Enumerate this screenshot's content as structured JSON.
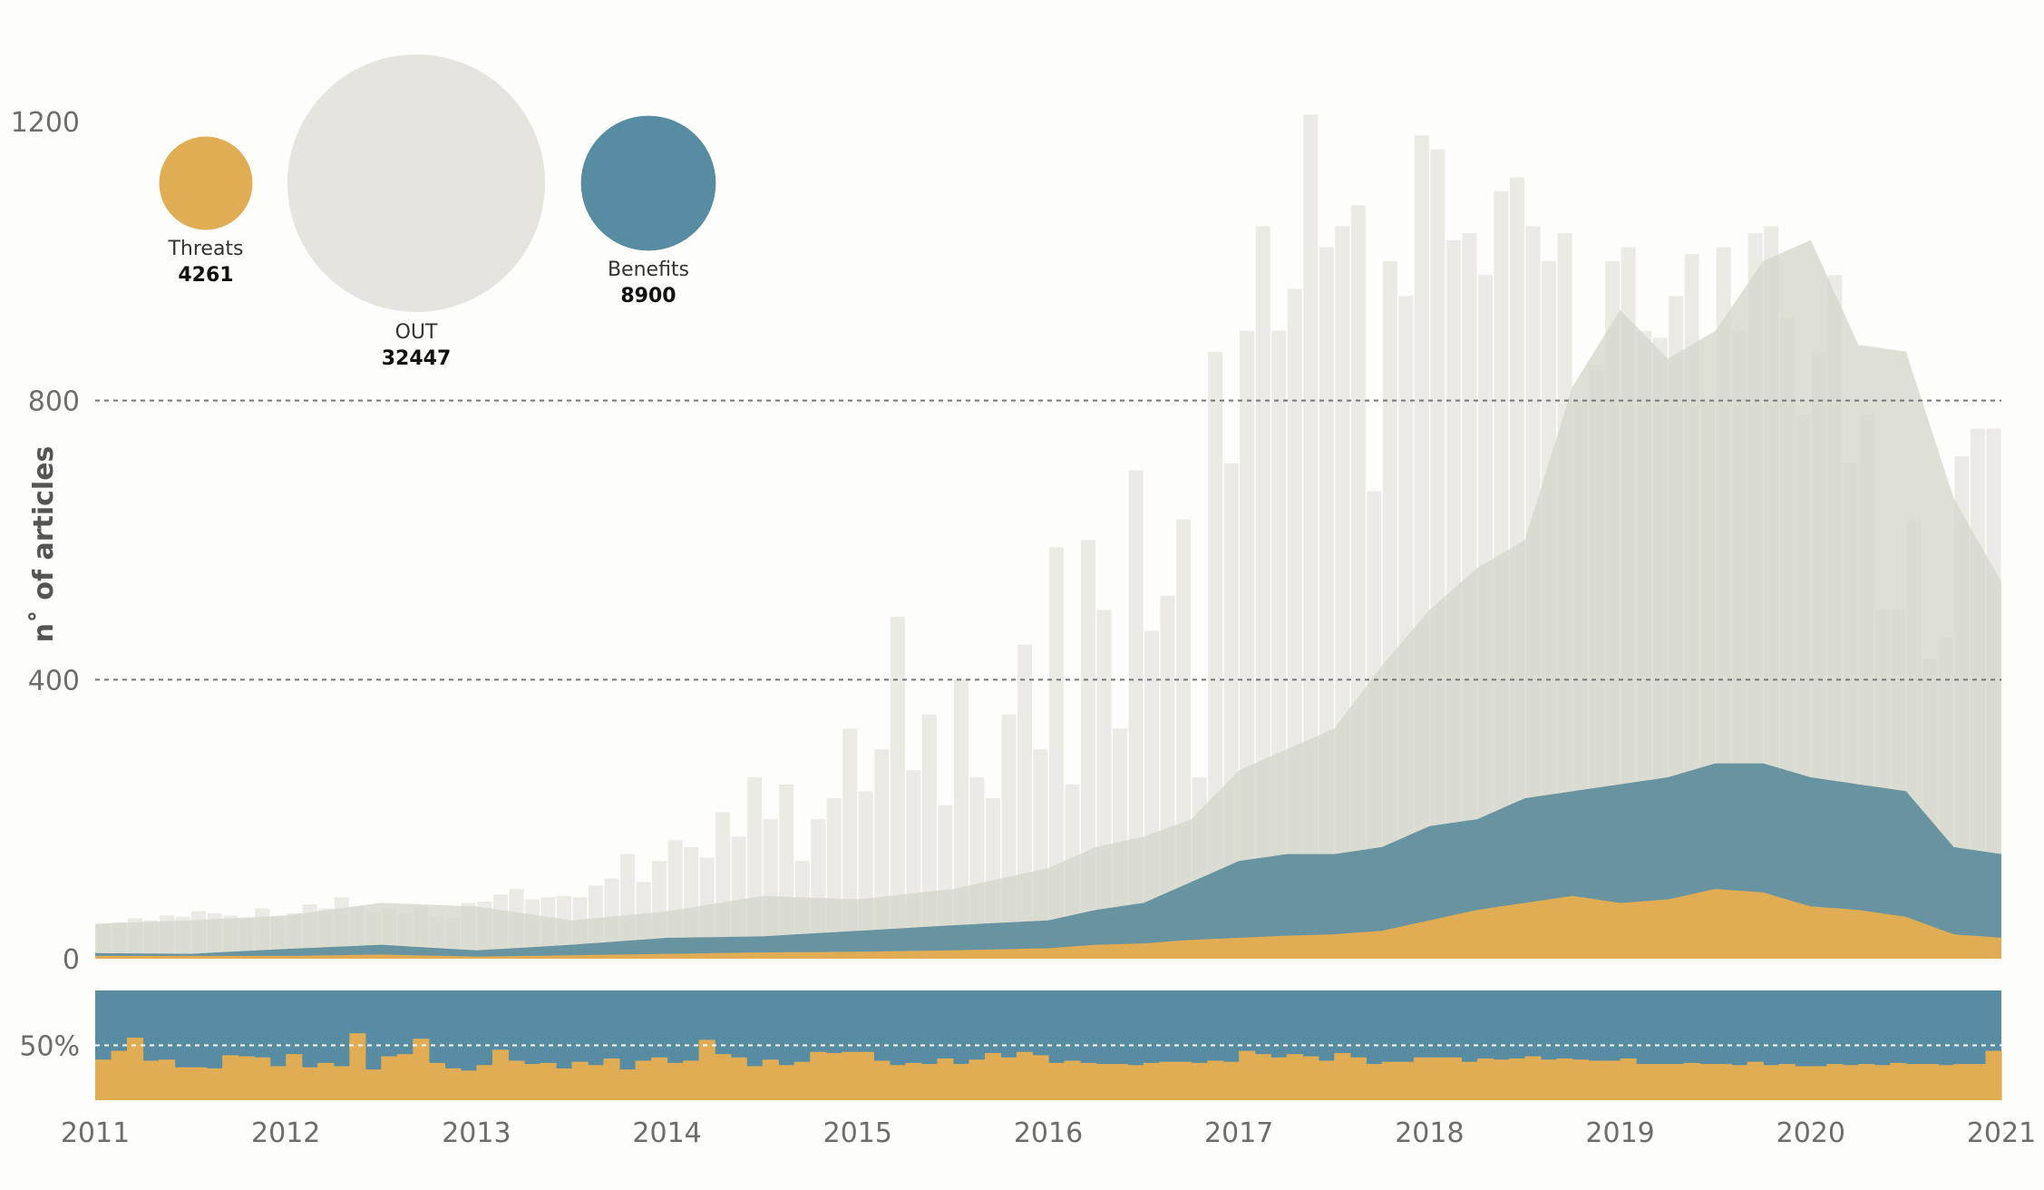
{
  "chart_data": [
    {
      "type": "area",
      "ylabel": "n˚ of articles",
      "ylim": [
        0,
        1200
      ],
      "yticks": [
        "0",
        "400",
        "800",
        "1200"
      ],
      "grid": "dashed lines at 400 and 800",
      "xticks": [
        "2011",
        "2012",
        "2013",
        "2014",
        "2015",
        "2016",
        "2017",
        "2018",
        "2019",
        "2020",
        "2021"
      ],
      "x_range": [
        "2011-01",
        "2021-01"
      ],
      "legend": {
        "placement": "top-left",
        "items": [
          {
            "name": "Threats",
            "value": "4261",
            "color": "#e1ad54"
          },
          {
            "name": "OUT",
            "value": "32447",
            "color": "#e5e4df"
          },
          {
            "name": "Benefits",
            "value": "8900",
            "color": "#578ca2"
          }
        ]
      },
      "anchor_months": [
        0,
        6,
        12,
        18,
        24,
        30,
        36,
        42,
        48,
        54,
        60,
        63,
        66,
        69,
        72,
        75,
        78,
        81,
        84,
        87,
        90,
        93,
        96,
        99,
        102,
        105,
        108,
        111,
        114,
        117,
        120
      ],
      "smoothed_total": [
        50,
        55,
        62,
        80,
        75,
        55,
        68,
        90,
        85,
        100,
        130,
        160,
        175,
        200,
        270,
        300,
        330,
        420,
        500,
        560,
        600,
        820,
        930,
        860,
        900,
        1000,
        1030,
        880,
        870,
        660,
        540
      ],
      "smoothed_benefits": [
        8,
        7,
        14,
        20,
        12,
        20,
        30,
        32,
        40,
        48,
        55,
        70,
        80,
        110,
        140,
        150,
        150,
        160,
        190,
        200,
        230,
        240,
        250,
        260,
        280,
        280,
        260,
        250,
        240,
        160,
        150
      ],
      "smoothed_threats": [
        4,
        4,
        4,
        6,
        3,
        5,
        7,
        9,
        10,
        12,
        15,
        20,
        22,
        27,
        30,
        33,
        35,
        40,
        55,
        70,
        80,
        90,
        80,
        85,
        100,
        95,
        75,
        70,
        60,
        35,
        30
      ],
      "monthly_bars_out": [
        50,
        52,
        58,
        55,
        62,
        60,
        68,
        65,
        62,
        58,
        72,
        60,
        65,
        78,
        72,
        88,
        75,
        68,
        72,
        65,
        75,
        60,
        58,
        80,
        82,
        92,
        100,
        85,
        88,
        90,
        88,
        105,
        115,
        150,
        110,
        140,
        170,
        160,
        145,
        210,
        175,
        260,
        200,
        250,
        140,
        200,
        230,
        330,
        240,
        300,
        490,
        270,
        350,
        220,
        400,
        260,
        230,
        350,
        450,
        300,
        590,
        250,
        600,
        500,
        330,
        700,
        470,
        520,
        630,
        260,
        870,
        710,
        900,
        1050,
        900,
        960,
        1210,
        1020,
        1050,
        1080,
        670,
        1000,
        950,
        1180,
        1160,
        1030,
        1040,
        980,
        1100,
        1120,
        1050,
        1000,
        1040,
        800,
        850,
        1000,
        1020,
        900,
        890,
        950,
        1010,
        800,
        1020,
        900,
        1040,
        1050,
        920,
        780,
        870,
        980,
        710,
        780,
        500,
        500,
        630,
        430,
        460,
        720,
        760,
        760
      ],
      "share_threats_pct": [
        37,
        45,
        57,
        36,
        37,
        30,
        30,
        29,
        41,
        40,
        39,
        31,
        42,
        30,
        34,
        31,
        61,
        28,
        40,
        42,
        56,
        34,
        29,
        27,
        32,
        46,
        36,
        33,
        34,
        29,
        35,
        32,
        38,
        28,
        36,
        39,
        34,
        36,
        55,
        42,
        39,
        31,
        37,
        32,
        35,
        44,
        43,
        44,
        44,
        36,
        32,
        34,
        33,
        38,
        33,
        37,
        43,
        39,
        44,
        41,
        34,
        36,
        34,
        33,
        33,
        32,
        34,
        35,
        35,
        34,
        36,
        35,
        45,
        42,
        39,
        42,
        40,
        36,
        43,
        39,
        33,
        35,
        35,
        39,
        39,
        39,
        35,
        38,
        37,
        38,
        40,
        37,
        38,
        37,
        36,
        36,
        38,
        33,
        33,
        33,
        34,
        33,
        33,
        32,
        35,
        32,
        33,
        31,
        31,
        33,
        32,
        33,
        32,
        34,
        33,
        33,
        32,
        33,
        33,
        45
      ]
    },
    {
      "type": "bar",
      "ytick": "50%",
      "ylim": [
        0,
        100
      ],
      "grid": "dashed line at 50%"
    }
  ]
}
